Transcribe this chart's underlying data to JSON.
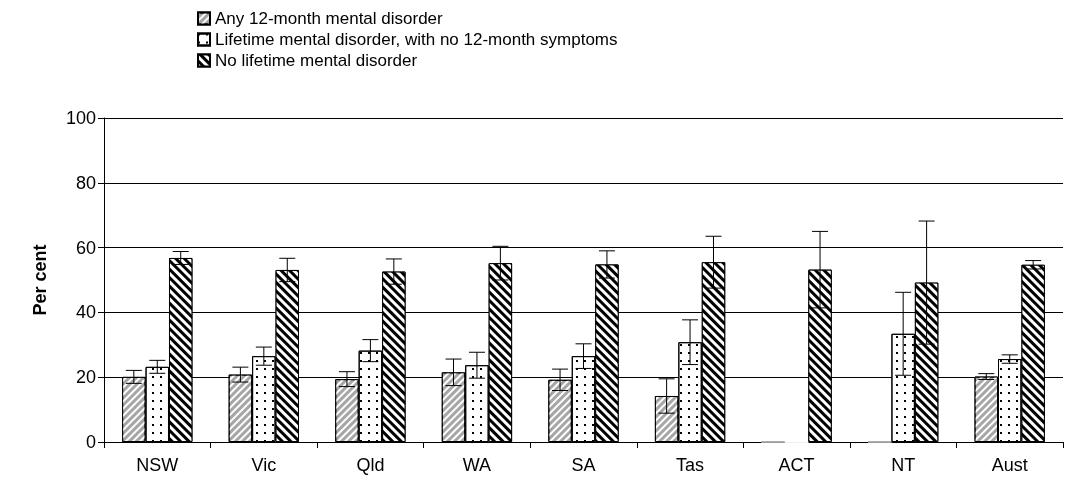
{
  "chart_data": {
    "type": "bar",
    "ylabel": "Per cent",
    "categories": [
      "NSW",
      "Vic",
      "Qld",
      "WA",
      "SA",
      "Tas",
      "ACT",
      "NT",
      "Aust"
    ],
    "series": [
      {
        "name": "Any 12-month mental disorder",
        "color": "#a6a6a6",
        "values": [
          20.1,
          20.8,
          19.4,
          21.5,
          19.2,
          14.2,
          0,
          0,
          20.2
        ],
        "errors": [
          2,
          2.3,
          2.3,
          4.1,
          3.3,
          5.3,
          null,
          null,
          0.9
        ]
      },
      {
        "name": "Lifetime mental disorder, with no 12-month symptoms",
        "color": "#ffffff",
        "values": [
          23.2,
          26.5,
          28.2,
          23.7,
          26.5,
          30.8,
          0,
          33.4,
          25.6
        ],
        "errors": [
          2,
          2.8,
          3.4,
          4,
          3.8,
          6.9,
          null,
          12.8,
          1.3
        ]
      },
      {
        "name": "No lifetime mental disorder",
        "color": "#000000",
        "values": [
          56.8,
          53.1,
          52.6,
          55.2,
          54.8,
          55.5,
          53.2,
          49.2,
          54.7
        ],
        "errors": [
          2,
          3.6,
          3.9,
          5.2,
          4.2,
          8,
          11.8,
          19,
          1.3
        ]
      }
    ],
    "ylim": [
      0,
      100
    ],
    "yticks": [
      0,
      20,
      40,
      60,
      80,
      100
    ],
    "grid": "y",
    "legend": "top"
  }
}
